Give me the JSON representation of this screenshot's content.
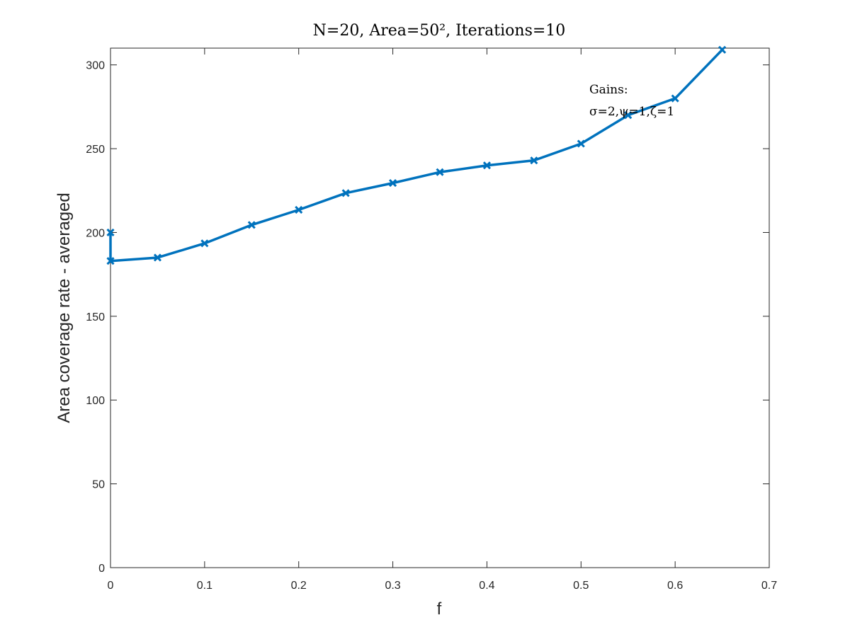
{
  "chart_data": {
    "type": "line",
    "title": "N=20, Area=50², Iterations=10",
    "xlabel": "f",
    "ylabel": "Area coverage rate - averaged",
    "xlim": [
      0,
      0.7
    ],
    "ylim": [
      0,
      310
    ],
    "xticks": [
      "0",
      "0.1",
      "0.2",
      "0.3",
      "0.4",
      "0.5",
      "0.6",
      "0.7"
    ],
    "yticks": [
      "0",
      "50",
      "100",
      "150",
      "200",
      "250",
      "300"
    ],
    "grid": false,
    "series": [
      {
        "color": "#0072BD",
        "marker": "x",
        "x": [
          0,
          0,
          0.05,
          0.1,
          0.15,
          0.2,
          0.25,
          0.3,
          0.35,
          0.4,
          0.45,
          0.5,
          0.55,
          0.6,
          0.65
        ],
        "y": [
          200,
          183,
          185,
          193.5,
          204.5,
          213.5,
          223.5,
          229.5,
          236,
          240,
          243,
          253,
          270,
          280,
          309
        ]
      }
    ],
    "annotation": {
      "line1": "Gains:",
      "line2": "σ=2,ψ=1,ζ=1"
    }
  }
}
